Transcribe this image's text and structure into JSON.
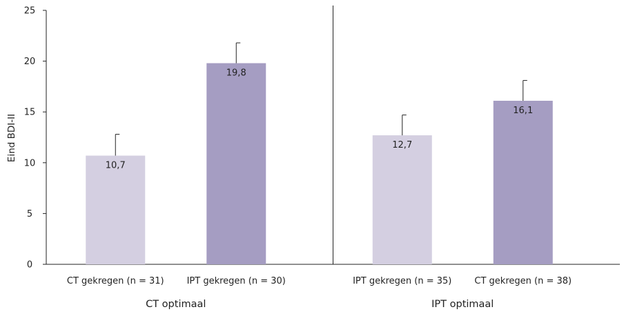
{
  "chart_data": {
    "type": "bar",
    "ylabel": "Eind BDI-II",
    "xlabel": "",
    "ylim": [
      0,
      25
    ],
    "yticks": [
      0,
      5,
      10,
      15,
      20,
      25
    ],
    "ytick_labels": [
      "0",
      "5",
      "10",
      "15",
      "20",
      "25"
    ],
    "grid": false,
    "groups": [
      {
        "label": "CT optimaal",
        "bars": [
          {
            "category": "CT gekregen (n = 31)",
            "value": 10.7,
            "value_label": "10,7",
            "error": 2.1,
            "color": "#d4cfe1"
          },
          {
            "category": "IPT gekregen (n = 30)",
            "value": 19.8,
            "value_label": "19,8",
            "error": 2.0,
            "color": "#a59dc2"
          }
        ]
      },
      {
        "label": "IPT optimaal",
        "bars": [
          {
            "category": "IPT gekregen (n = 35)",
            "value": 12.7,
            "value_label": "12,7",
            "error": 2.0,
            "color": "#d4cfe1"
          },
          {
            "category": "CT gekregen (n = 38)",
            "value": 16.1,
            "value_label": "16,1",
            "error": 2.0,
            "color": "#a59dc2"
          }
        ]
      }
    ]
  }
}
